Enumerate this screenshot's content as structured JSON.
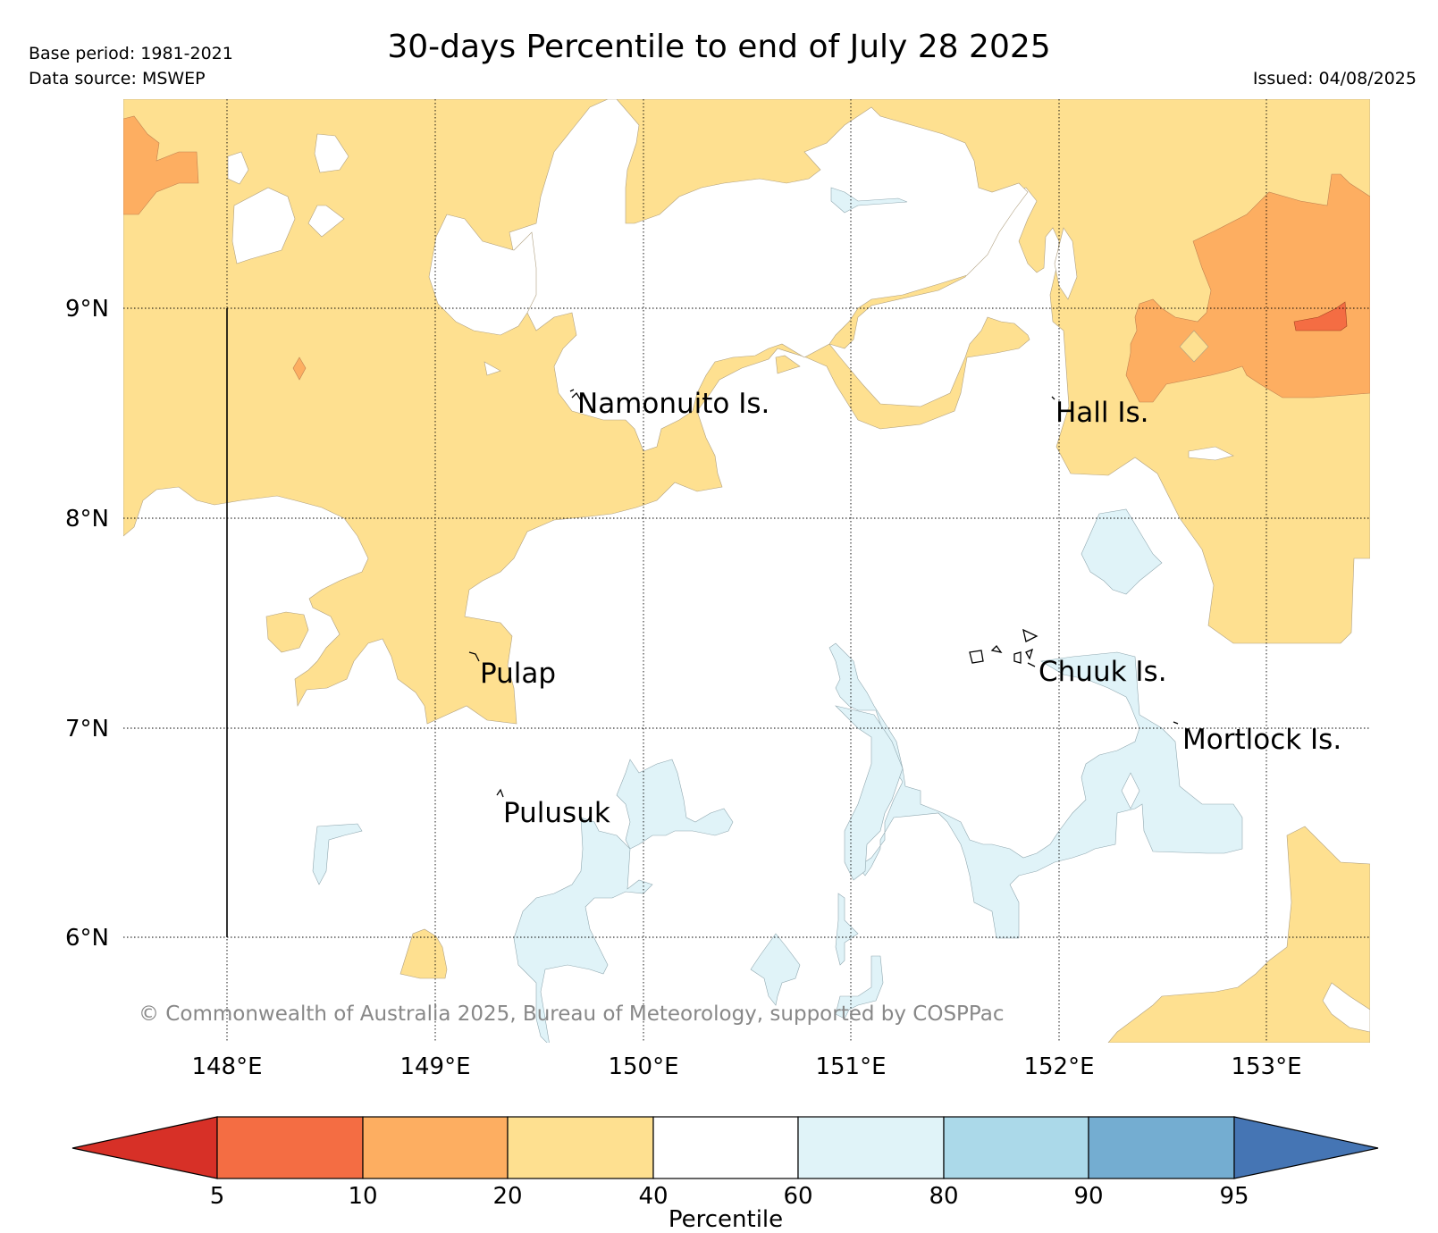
{
  "header": {
    "base_period": "Base period: 1981-2021",
    "data_source": "Data source: MSWEP",
    "title": "30-days Percentile to end of July 28 2025",
    "issued": "Issued: 04/08/2025"
  },
  "map": {
    "lat_labels": [
      "9°N",
      "8°N",
      "7°N",
      "6°N"
    ],
    "lon_labels": [
      "148°E",
      "149°E",
      "150°E",
      "151°E",
      "152°E",
      "153°E"
    ],
    "places": [
      "Namonuito Is.",
      "Hall Is.",
      "Pulap",
      "Chuuk Is.",
      "Mortlock Is.",
      "Pulusuk"
    ],
    "copyright": "© Commonwealth of Australia 2025, Bureau of Meteorology, supported by COSPPac"
  },
  "legend": {
    "label": "Percentile",
    "ticks": [
      "5",
      "10",
      "20",
      "40",
      "60",
      "80",
      "90",
      "95"
    ],
    "colors": {
      "below_5": "#d73027",
      "5_10": "#f46d43",
      "10_20": "#fdae61",
      "20_40": "#fee090",
      "40_60": "#ffffff",
      "60_80": "#e0f3f8",
      "80_90": "#abd9e9",
      "90_95": "#74add1",
      "above_95": "#4575b4"
    }
  }
}
